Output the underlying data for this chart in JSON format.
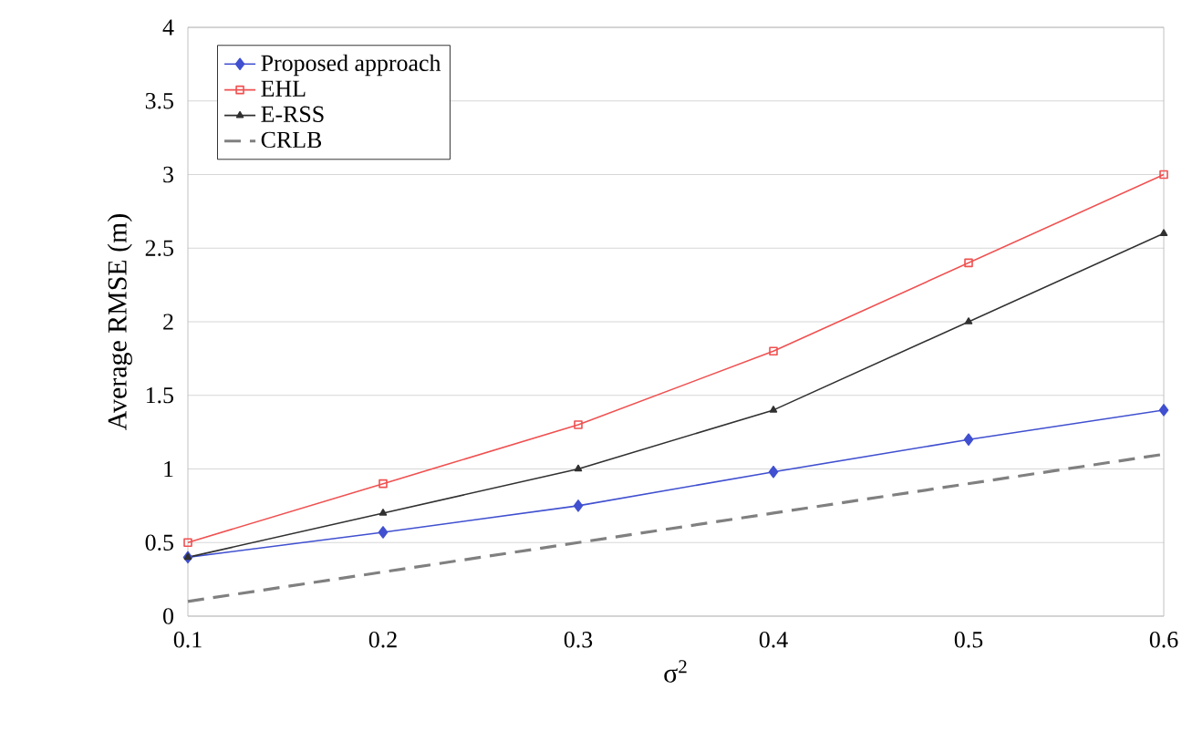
{
  "chart_data": {
    "type": "line",
    "xlabel": "σ$^{2}$",
    "ylabel": "Average RMSE (m)",
    "x": [
      0.1,
      0.2,
      0.3,
      0.4,
      0.5,
      0.6
    ],
    "series": [
      {
        "name": "Proposed approach",
        "color": "#4050d0",
        "marker": "diamond",
        "line_style": "solid",
        "values": [
          0.4,
          0.57,
          0.75,
          0.98,
          1.2,
          1.4
        ]
      },
      {
        "name": "EHL",
        "color": "#f05050",
        "marker": "square",
        "line_style": "solid",
        "values": [
          0.5,
          0.9,
          1.3,
          1.8,
          2.4,
          3.0
        ]
      },
      {
        "name": "E-RSS",
        "color": "#303030",
        "marker": "triangle",
        "line_style": "solid",
        "values": [
          0.4,
          0.7,
          1.0,
          1.4,
          2.0,
          2.6
        ]
      },
      {
        "name": "CRLB",
        "color": "#808080",
        "marker": "none",
        "line_style": "dashed",
        "values": [
          0.1,
          0.3,
          0.5,
          0.7,
          0.9,
          1.1
        ]
      }
    ],
    "xlim": [
      0.1,
      0.6
    ],
    "xticks": [
      0.1,
      0.2,
      0.3,
      0.4,
      0.5,
      0.6
    ],
    "ylim": [
      0,
      4
    ],
    "yticks": [
      0,
      0.5,
      1,
      1.5,
      2,
      2.5,
      3,
      3.5,
      4
    ],
    "grid": "y",
    "legend": "top left"
  }
}
